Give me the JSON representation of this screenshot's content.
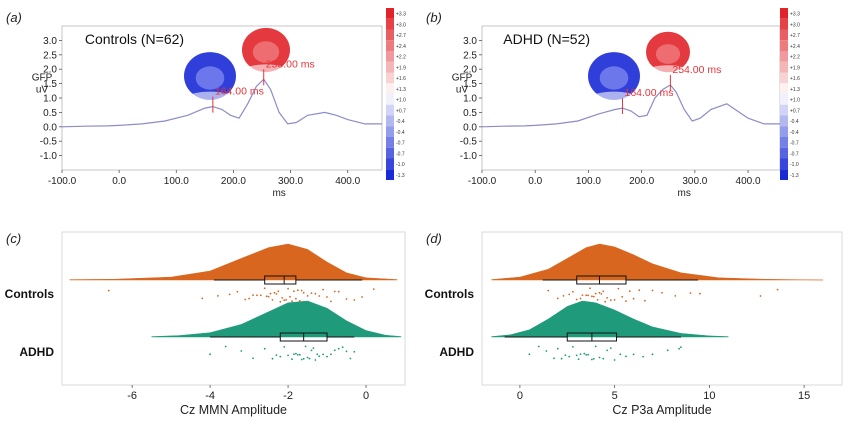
{
  "panels": {
    "a": {
      "label": "(a)"
    },
    "b": {
      "label": "(b)"
    },
    "c": {
      "label": "(c)"
    },
    "d": {
      "label": "(d)"
    }
  },
  "colors": {
    "gfp_line": "#8c8cc8",
    "marker": "#e8343a",
    "controls": "#d9661f",
    "adhd": "#1f9a7a",
    "scale_pos": "#e0242a",
    "scale_neg": "#1a2ad6"
  },
  "color_scale": {
    "ticks": [
      "+3.3",
      "+3.0",
      "+2.7",
      "+2.4",
      "+2.2",
      "+1.9",
      "+1.6",
      "+1.3",
      "+1.0",
      "+0.7",
      "-0.4",
      "-0.4",
      "-0.7",
      "-0.7",
      "-1.0",
      "-1.3"
    ]
  },
  "chart_data": [
    {
      "panel": "a",
      "type": "line",
      "title": "Controls (N=62)",
      "ylabel": "GFP\nuV",
      "xlabel": "ms",
      "xlim": [
        -100,
        460
      ],
      "ylim": [
        -1.5,
        3.5
      ],
      "xticks": [
        "-100.0",
        "0.0",
        "100.0",
        "200.0",
        "300.0",
        "400.0"
      ],
      "yticks": [
        "3.0",
        "2.5",
        "2.0",
        "1.5",
        "1.0",
        "0.5",
        "0.0",
        "-0.5",
        "-1.0"
      ],
      "series": [
        {
          "x": [
            -100,
            -60,
            -20,
            0,
            40,
            80,
            120,
            150,
            164,
            180,
            195,
            210,
            225,
            240,
            253,
            265,
            280,
            295,
            310,
            330,
            360,
            380,
            400,
            430,
            460
          ],
          "y": [
            0.0,
            0.02,
            0.03,
            0.05,
            0.1,
            0.2,
            0.4,
            0.65,
            0.7,
            0.6,
            0.4,
            0.3,
            0.8,
            1.4,
            1.65,
            1.3,
            0.5,
            0.1,
            0.15,
            0.4,
            0.5,
            0.4,
            0.25,
            0.1,
            0.1
          ]
        }
      ],
      "markers": [
        {
          "x": 164,
          "label": "164.00 ms"
        },
        {
          "x": 253,
          "label": "253.00 ms"
        }
      ]
    },
    {
      "panel": "b",
      "type": "line",
      "title": "ADHD (N=52)",
      "ylabel": "GFP\nuV",
      "xlabel": "ms",
      "xlim": [
        -100,
        460
      ],
      "ylim": [
        -1.5,
        3.5
      ],
      "xticks": [
        "-100.0",
        "0.0",
        "100.0",
        "200.0",
        "300.0",
        "400.0"
      ],
      "yticks": [
        "3.0",
        "2.5",
        "2.0",
        "1.5",
        "1.0",
        "0.5",
        "0.0",
        "-0.5",
        "-1.0"
      ],
      "series": [
        {
          "x": [
            -100,
            -60,
            -20,
            0,
            40,
            80,
            120,
            150,
            164,
            180,
            195,
            210,
            225,
            240,
            254,
            265,
            280,
            295,
            310,
            330,
            360,
            380,
            400,
            430,
            460
          ],
          "y": [
            0.0,
            0.02,
            0.03,
            0.05,
            0.1,
            0.2,
            0.45,
            0.6,
            0.65,
            0.55,
            0.35,
            0.4,
            1.0,
            1.3,
            1.45,
            1.2,
            0.6,
            0.2,
            0.3,
            0.6,
            0.8,
            0.55,
            0.3,
            0.1,
            0.1
          ]
        }
      ],
      "markers": [
        {
          "x": 164,
          "label": "164.00 ms"
        },
        {
          "x": 254,
          "label": "254.00 ms"
        }
      ]
    },
    {
      "panel": "c",
      "type": "raincloud",
      "xlabel": "Cz MMN Amplitude",
      "xlim": [
        -7.8,
        1.0
      ],
      "xticks": [
        -6,
        -4,
        -2,
        0
      ],
      "groups": [
        {
          "name": "Controls",
          "color": "#d9661f",
          "density": {
            "x": [
              -7.6,
              -6.5,
              -5.0,
              -4.0,
              -3.2,
              -2.5,
              -2.0,
              -1.5,
              -1.0,
              -0.5,
              0.0,
              0.8
            ],
            "y": [
              0.01,
              0.02,
              0.08,
              0.25,
              0.6,
              0.9,
              1.0,
              0.85,
              0.5,
              0.2,
              0.06,
              0.01
            ]
          },
          "box": {
            "whisker_low": -3.9,
            "q1": -2.6,
            "median": -2.1,
            "q3": -1.8,
            "whisker_high": -0.1
          },
          "points": [
            -6.6,
            -4.2,
            -3.8,
            -3.5,
            -3.3,
            -3.1,
            -3.0,
            -2.9,
            -2.8,
            -2.7,
            -2.6,
            -2.55,
            -2.5,
            -2.45,
            -2.4,
            -2.35,
            -2.3,
            -2.25,
            -2.2,
            -2.15,
            -2.1,
            -2.05,
            -2.0,
            -1.95,
            -1.9,
            -1.85,
            -1.8,
            -1.75,
            -1.7,
            -1.65,
            -1.6,
            -1.5,
            -1.4,
            -1.3,
            -1.2,
            -1.1,
            -1.0,
            -0.9,
            -0.8,
            -0.7,
            -0.5,
            -0.3,
            -0.1,
            0.2
          ]
        },
        {
          "name": "ADHD",
          "color": "#1f9a7a",
          "density": {
            "x": [
              -5.5,
              -4.8,
              -4.0,
              -3.2,
              -2.5,
              -2.0,
              -1.5,
              -1.0,
              -0.5,
              0.0,
              0.5,
              0.9
            ],
            "y": [
              0.01,
              0.04,
              0.12,
              0.35,
              0.7,
              0.95,
              1.0,
              0.8,
              0.45,
              0.18,
              0.05,
              0.01
            ]
          },
          "box": {
            "whisker_low": -4.0,
            "q1": -2.2,
            "median": -1.6,
            "q3": -1.0,
            "whisker_high": -0.3
          },
          "points": [
            -4.0,
            -3.6,
            -3.2,
            -2.9,
            -2.6,
            -2.4,
            -2.3,
            -2.2,
            -2.1,
            -2.0,
            -1.9,
            -1.85,
            -1.8,
            -1.75,
            -1.7,
            -1.65,
            -1.6,
            -1.55,
            -1.5,
            -1.45,
            -1.4,
            -1.35,
            -1.3,
            -1.25,
            -1.2,
            -1.1,
            -1.0,
            -0.9,
            -0.8,
            -0.7,
            -0.6,
            -0.5,
            -0.4,
            -0.3
          ]
        }
      ]
    },
    {
      "panel": "d",
      "type": "raincloud",
      "xlabel": "Cz P3a Amplitude",
      "xlim": [
        -2.0,
        17.0
      ],
      "xticks": [
        0,
        5,
        10,
        15
      ],
      "groups": [
        {
          "name": "Controls",
          "color": "#d9661f",
          "density": {
            "x": [
              -1.5,
              0.0,
              1.5,
              2.5,
              3.5,
              4.2,
              5.0,
              6.0,
              7.0,
              8.5,
              10.5,
              13.0,
              16.0
            ],
            "y": [
              0.01,
              0.08,
              0.3,
              0.6,
              0.9,
              1.0,
              0.92,
              0.7,
              0.45,
              0.2,
              0.06,
              0.02,
              0.0
            ]
          },
          "box": {
            "whisker_low": 1.2,
            "q1": 3.0,
            "median": 4.2,
            "q3": 5.6,
            "whisker_high": 9.4
          },
          "points": [
            1.5,
            2.0,
            2.3,
            2.6,
            2.8,
            3.0,
            3.2,
            3.3,
            3.5,
            3.6,
            3.7,
            3.8,
            3.9,
            4.0,
            4.1,
            4.2,
            4.3,
            4.4,
            4.5,
            4.6,
            4.8,
            5.0,
            5.2,
            5.4,
            5.6,
            5.8,
            6.0,
            6.3,
            6.6,
            7.0,
            7.5,
            8.2,
            9.0,
            9.5,
            12.7,
            13.6
          ]
        },
        {
          "name": "ADHD",
          "color": "#1f9a7a",
          "density": {
            "x": [
              -1.5,
              -0.5,
              0.5,
              1.5,
              2.5,
              3.3,
              4.0,
              5.0,
              6.0,
              7.0,
              8.5,
              10.0,
              11.0
            ],
            "y": [
              0.01,
              0.06,
              0.2,
              0.5,
              0.85,
              1.0,
              0.95,
              0.75,
              0.5,
              0.28,
              0.1,
              0.03,
              0.01
            ]
          },
          "box": {
            "whisker_low": -0.8,
            "q1": 2.5,
            "median": 3.8,
            "q3": 5.1,
            "whisker_high": 8.5
          },
          "points": [
            0.5,
            1.0,
            1.4,
            1.8,
            2.0,
            2.2,
            2.4,
            2.6,
            2.8,
            3.0,
            3.1,
            3.2,
            3.4,
            3.5,
            3.6,
            3.8,
            3.9,
            4.0,
            4.2,
            4.4,
            4.6,
            4.8,
            5.0,
            5.3,
            5.6,
            6.0,
            6.5,
            7.0,
            7.8,
            8.4,
            8.5
          ]
        }
      ]
    }
  ]
}
